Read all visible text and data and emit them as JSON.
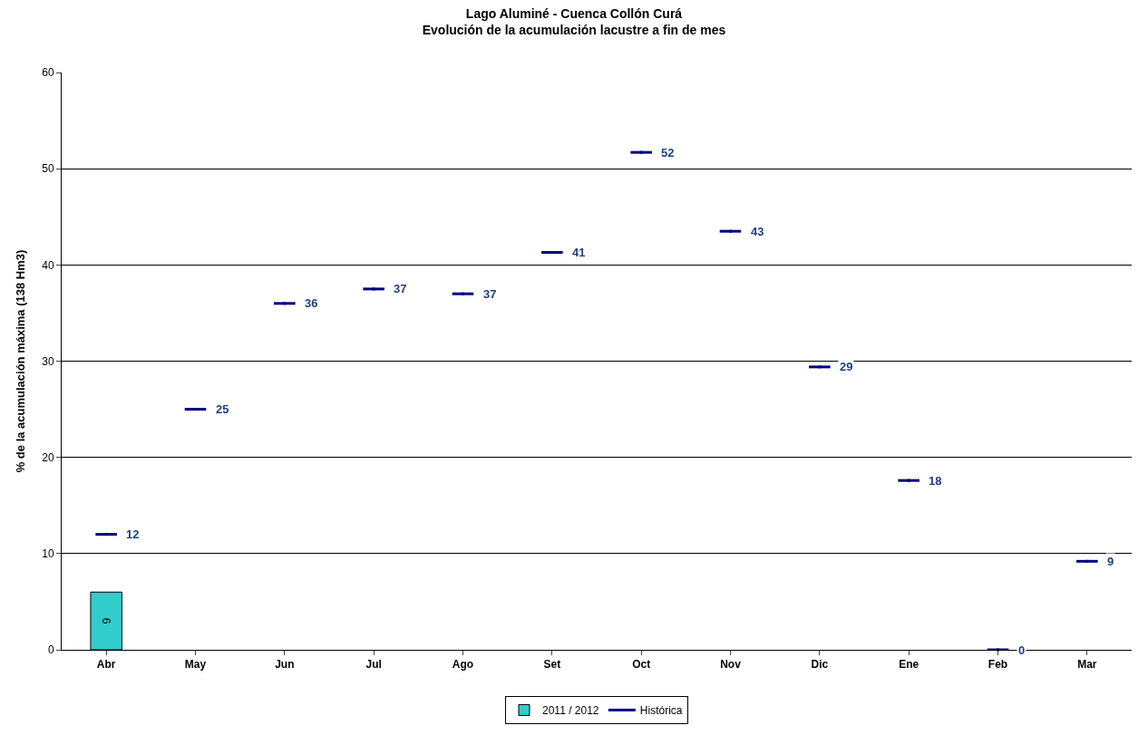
{
  "chart_data": {
    "type": "bar",
    "title": "Lago Aluminé - Cuenca Collón Curá",
    "subtitle": "Evolución de la acumulación lacustre a fin de mes",
    "ylabel": "% de la acumulación máxima (138 Hm3)",
    "categories": [
      "Abr",
      "May",
      "Jun",
      "Jul",
      "Ago",
      "Set",
      "Oct",
      "Nov",
      "Dic",
      "Ene",
      "Feb",
      "Mar"
    ],
    "series": [
      {
        "name": "2011 / 2012",
        "color": "#33cccc",
        "values": [
          6,
          null,
          null,
          null,
          null,
          null,
          null,
          null,
          null,
          null,
          null,
          null
        ],
        "value_labels": [
          "6",
          null,
          null,
          null,
          null,
          null,
          null,
          null,
          null,
          null,
          null,
          null
        ]
      },
      {
        "name": "Histórica",
        "type": "scatter",
        "color": "#000080",
        "values": [
          12,
          25,
          36,
          37.5,
          37,
          41.3,
          51.7,
          43.5,
          29.4,
          17.6,
          0,
          9.2
        ],
        "value_labels": [
          "12",
          "25",
          "36",
          "37",
          "37",
          "41",
          "52",
          "43",
          "29",
          "18",
          "0",
          "9"
        ]
      }
    ],
    "ylim": [
      0,
      60
    ],
    "yticks": [
      0,
      10,
      20,
      30,
      40,
      50,
      60
    ],
    "grid": "y",
    "legend": "bottom"
  }
}
